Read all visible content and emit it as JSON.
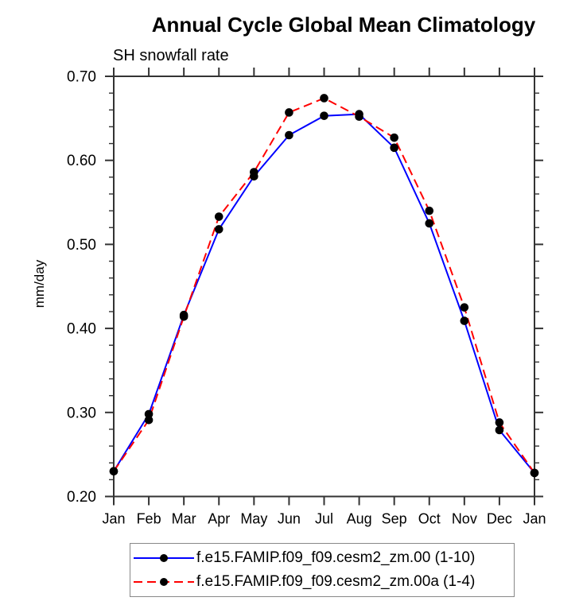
{
  "title": "Annual Cycle Global Mean Climatology",
  "subtitle": "SH snowfall rate",
  "ylabel": "mm/day",
  "colors": {
    "series1": "#0000ff",
    "series2": "#ff0000",
    "marker": "#000000",
    "axis": "#333333",
    "text": "#000000",
    "legend_border": "#888888"
  },
  "chart_data": {
    "type": "line",
    "title": "Annual Cycle Global Mean Climatology",
    "subtitle": "SH snowfall rate",
    "xlabel": "",
    "ylabel": "mm/day",
    "categories": [
      "Jan",
      "Feb",
      "Mar",
      "Apr",
      "May",
      "Jun",
      "Jul",
      "Aug",
      "Sep",
      "Oct",
      "Nov",
      "Dec",
      "Jan"
    ],
    "series": [
      {
        "name": "f.e15.FAMIP.f09_f09.cesm2_zm.00 (1-10)",
        "color": "#0000ff",
        "line_style": "solid",
        "marker": "black-dot",
        "values": [
          0.23,
          0.298,
          0.416,
          0.518,
          0.581,
          0.63,
          0.653,
          0.655,
          0.615,
          0.525,
          0.409,
          0.279,
          0.228
        ]
      },
      {
        "name": "f.e15.FAMIP.f09_f09.cesm2_zm.00a (1-4)",
        "color": "#ff0000",
        "line_style": "dashed",
        "marker": "black-dot",
        "values": [
          0.23,
          0.291,
          0.414,
          0.533,
          0.586,
          0.657,
          0.674,
          0.652,
          0.627,
          0.54,
          0.425,
          0.288,
          0.228
        ]
      }
    ],
    "ylim": [
      0.2,
      0.7
    ],
    "ytick_labels": [
      "0.20",
      "0.30",
      "0.40",
      "0.50",
      "0.60",
      "0.70"
    ],
    "ytick_major_step": 0.1,
    "ytick_minor_step": 0.02,
    "grid": false,
    "tick_direction": "out",
    "frame": "box-all-sides",
    "legend_position": "bottom"
  }
}
